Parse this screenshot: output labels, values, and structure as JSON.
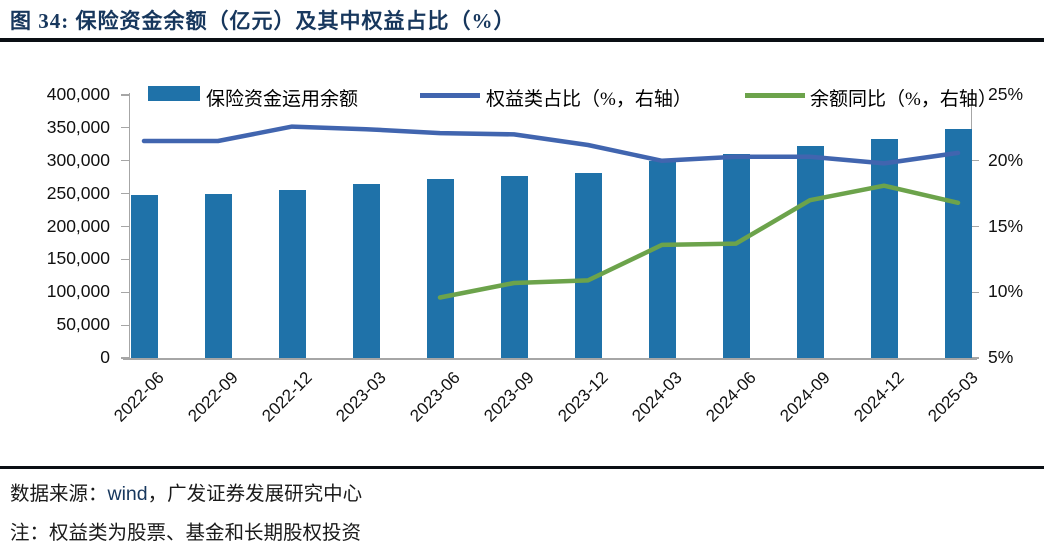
{
  "title": "图 34: 保险资金余额（亿元）及其中权益占比（%）",
  "legend": [
    {
      "label": "保险资金运用余额",
      "marker": "bar-swatch",
      "color": "#1F72A9"
    },
    {
      "label": "权益类占比（%，右轴）",
      "marker": "line-swatch",
      "color": "#4165AF"
    },
    {
      "label": "余额同比（%，右轴）",
      "marker": "line-swatch",
      "color": "#6CA34B"
    }
  ],
  "chart_data": {
    "type": "combo",
    "title": "保险资金余额（亿元）及其中权益占比（%）",
    "categories": [
      "2022-06",
      "2022-09",
      "2022-12",
      "2023-03",
      "2023-06",
      "2023-09",
      "2023-12",
      "2024-03",
      "2024-06",
      "2024-09",
      "2024-12",
      "2025-03"
    ],
    "series": [
      {
        "name": "保险资金运用余额",
        "type": "bar",
        "axis": "left",
        "color": "#1F72A9",
        "values": [
          248000,
          249000,
          255000,
          264000,
          273000,
          277000,
          282000,
          300000,
          311000,
          322000,
          333000,
          349000
        ]
      },
      {
        "name": "权益类占比（%，右轴）",
        "type": "line",
        "axis": "right",
        "color": "#4165AF",
        "values": [
          21.5,
          21.5,
          22.6,
          22.4,
          22.1,
          22.0,
          21.2,
          20.0,
          20.3,
          20.3,
          19.8,
          20.6
        ]
      },
      {
        "name": "余额同比（%，右轴）",
        "type": "line",
        "axis": "right",
        "color": "#6CA34B",
        "values": [
          null,
          null,
          null,
          null,
          9.6,
          10.7,
          10.9,
          13.6,
          13.7,
          17.0,
          18.1,
          16.8
        ]
      }
    ],
    "left_axis": {
      "min": 0,
      "max": 400000,
      "step": 50000,
      "tick_labels": [
        "400,000",
        "350,000",
        "300,000",
        "250,000",
        "200,000",
        "150,000",
        "100,000",
        "50,000",
        "0"
      ]
    },
    "right_axis": {
      "min": 5,
      "max": 25,
      "step": 5,
      "tick_labels": [
        "25%",
        "20%",
        "15%",
        "10%",
        "5%"
      ]
    },
    "grid": false,
    "legend_position": "top"
  },
  "footer": {
    "source_prefix": "数据来源：",
    "source_wind": "wind",
    "source_suffix": "，广发证券发展研究中心",
    "note": "注：权益类为股票、基金和长期股权投资"
  },
  "colors": {
    "bar": "#1F72A9",
    "equity_line": "#4165AF",
    "yoy_line": "#6CA34B",
    "title_text": "#17375D",
    "axis_line": "#A6A6A6",
    "tick_text": "#111111",
    "rule": "#0A0F14"
  }
}
